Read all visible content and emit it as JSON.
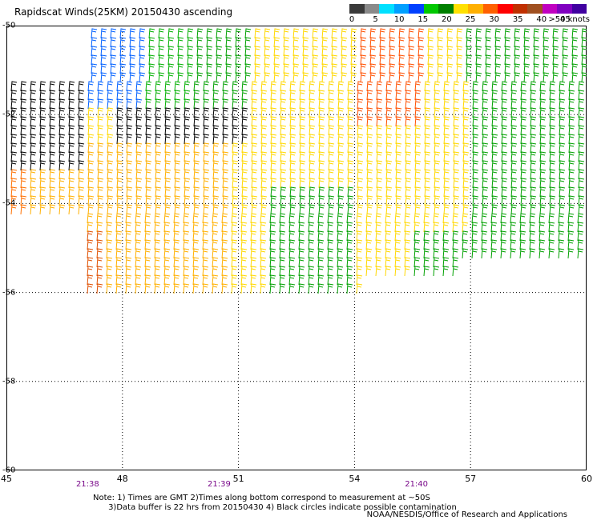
{
  "title": "Rapidscat Winds(25KM) 20150430 ascending",
  "legend": {
    "ticks": [
      "0",
      "5",
      "10",
      "15",
      "20",
      "25",
      "30",
      "35",
      "40",
      "45"
    ],
    "units": ">50 knots",
    "colors": [
      "#3a3a3a",
      "#8a8a8a",
      "#00e0ff",
      "#00a0ff",
      "#0040ff",
      "#00c800",
      "#008000",
      "#ffe000",
      "#ffb000",
      "#ff6000",
      "#ff0000",
      "#c03000",
      "#a05020",
      "#c000c0",
      "#8000c0",
      "#4000a0"
    ]
  },
  "map": {
    "lon_range": [
      45,
      60
    ],
    "lat_range": [
      -50,
      -60
    ],
    "lon_ticks": [
      "45",
      "48",
      "51",
      "54",
      "57",
      "60"
    ],
    "lat_ticks": [
      "-50",
      "-52",
      "-54",
      "-56",
      "-58",
      "-60"
    ],
    "time_ticks": [
      {
        "label": "21:38",
        "lon": 47.1
      },
      {
        "label": "21:39",
        "lon": 50.5
      },
      {
        "label": "21:40",
        "lon": 55.6
      }
    ]
  },
  "notes": {
    "line1": "Note: 1) Times are GMT 2)Times along bottom correspond to measurement at ~50S",
    "line2": "      3)Data buffer is 22 hrs from 20150430 4) Black circles indicate possible contamination"
  },
  "credit": "NOAA/NESDIS/Office of Research and Applications"
}
